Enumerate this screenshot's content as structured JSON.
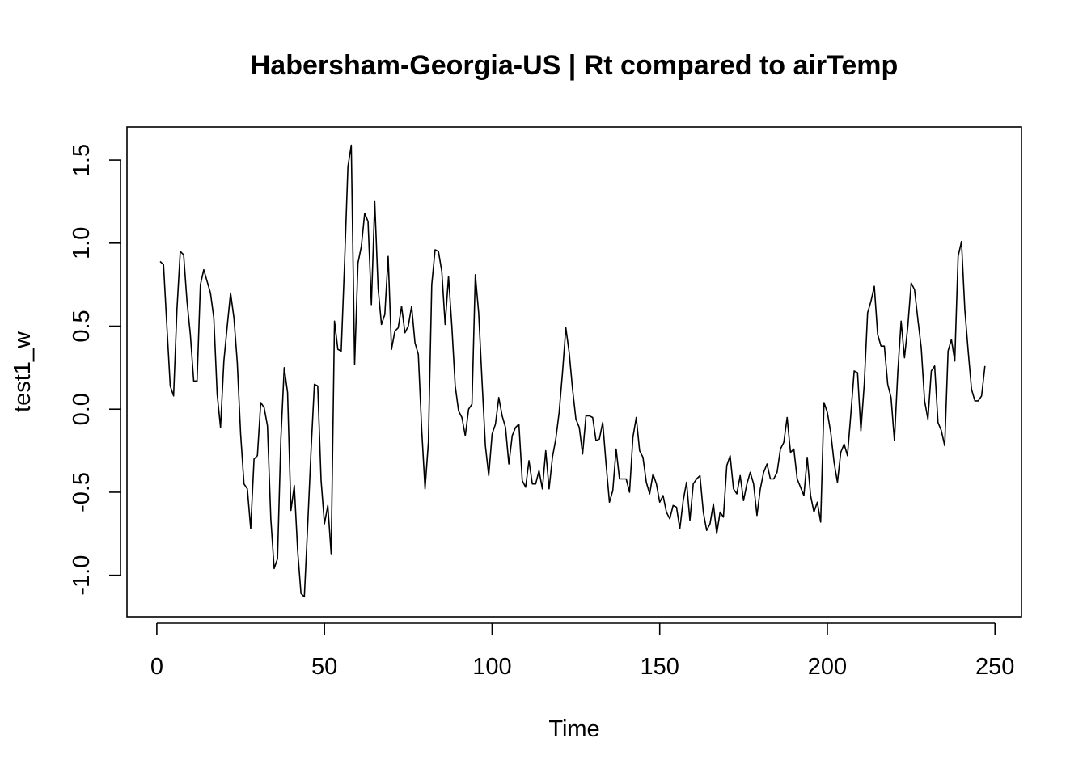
{
  "chart_data": {
    "type": "line",
    "title": "Habersham-Georgia-US | Rt compared to airTemp",
    "xlabel": "Time",
    "ylabel": "test1_w",
    "xlim": [
      -8.9,
      257.9
    ],
    "ylim": [
      -1.25,
      1.7
    ],
    "xticks": [
      0,
      50,
      100,
      150,
      200,
      250
    ],
    "yticks": [
      -1.0,
      -0.5,
      0.0,
      0.5,
      1.0,
      1.5
    ],
    "xtick_labels": [
      "0",
      "50",
      "100",
      "150",
      "200",
      "250"
    ],
    "ytick_labels": [
      "-1.0",
      "-0.5",
      "0.0",
      "0.5",
      "1.0",
      "1.5"
    ],
    "grid": false,
    "line_color": "#000000",
    "x_start": 1,
    "x_step": 1,
    "values": [
      0.89,
      0.87,
      0.5,
      0.14,
      0.08,
      0.6,
      0.95,
      0.93,
      0.65,
      0.45,
      0.17,
      0.17,
      0.75,
      0.84,
      0.77,
      0.7,
      0.55,
      0.09,
      -0.11,
      0.29,
      0.5,
      0.7,
      0.55,
      0.28,
      -0.15,
      -0.45,
      -0.48,
      -0.72,
      -0.3,
      -0.28,
      0.04,
      0.01,
      -0.1,
      -0.66,
      -0.96,
      -0.9,
      -0.18,
      0.25,
      0.1,
      -0.61,
      -0.46,
      -0.85,
      -1.11,
      -1.13,
      -0.7,
      -0.25,
      0.15,
      0.14,
      -0.43,
      -0.69,
      -0.58,
      -0.87,
      0.53,
      0.36,
      0.35,
      0.88,
      1.46,
      1.59,
      0.27,
      0.88,
      0.98,
      1.18,
      1.13,
      0.63,
      1.25,
      0.73,
      0.51,
      0.57,
      0.92,
      0.36,
      0.47,
      0.49,
      0.62,
      0.46,
      0.5,
      0.62,
      0.4,
      0.33,
      -0.12,
      -0.48,
      -0.2,
      0.75,
      0.96,
      0.95,
      0.83,
      0.51,
      0.8,
      0.5,
      0.14,
      -0.01,
      -0.05,
      -0.16,
      0.0,
      0.03,
      0.81,
      0.58,
      0.17,
      -0.22,
      -0.4,
      -0.15,
      -0.09,
      0.07,
      -0.04,
      -0.11,
      -0.33,
      -0.16,
      -0.11,
      -0.09,
      -0.43,
      -0.47,
      -0.31,
      -0.45,
      -0.45,
      -0.37,
      -0.48,
      -0.25,
      -0.48,
      -0.29,
      -0.18,
      -0.02,
      0.22,
      0.49,
      0.34,
      0.12,
      -0.06,
      -0.11,
      -0.27,
      -0.04,
      -0.04,
      -0.05,
      -0.19,
      -0.18,
      -0.08,
      -0.33,
      -0.56,
      -0.49,
      -0.24,
      -0.42,
      -0.42,
      -0.42,
      -0.5,
      -0.17,
      -0.05,
      -0.25,
      -0.29,
      -0.44,
      -0.51,
      -0.39,
      -0.45,
      -0.56,
      -0.52,
      -0.62,
      -0.66,
      -0.58,
      -0.59,
      -0.72,
      -0.55,
      -0.44,
      -0.67,
      -0.45,
      -0.42,
      -0.4,
      -0.62,
      -0.73,
      -0.69,
      -0.57,
      -0.75,
      -0.62,
      -0.65,
      -0.34,
      -0.28,
      -0.48,
      -0.51,
      -0.4,
      -0.55,
      -0.45,
      -0.38,
      -0.45,
      -0.64,
      -0.48,
      -0.38,
      -0.33,
      -0.42,
      -0.42,
      -0.38,
      -0.24,
      -0.2,
      -0.05,
      -0.26,
      -0.24,
      -0.42,
      -0.47,
      -0.52,
      -0.29,
      -0.52,
      -0.62,
      -0.56,
      -0.68,
      0.04,
      -0.02,
      -0.14,
      -0.32,
      -0.44,
      -0.26,
      -0.21,
      -0.28,
      -0.03,
      0.23,
      0.22,
      -0.13,
      0.15,
      0.58,
      0.65,
      0.74,
      0.45,
      0.38,
      0.38,
      0.15,
      0.07,
      -0.19,
      0.22,
      0.53,
      0.31,
      0.5,
      0.76,
      0.72,
      0.54,
      0.37,
      0.05,
      -0.06,
      0.23,
      0.26,
      -0.08,
      -0.13,
      -0.22,
      0.35,
      0.42,
      0.29,
      0.92,
      1.01,
      0.6,
      0.35,
      0.12,
      0.05,
      0.05,
      0.08,
      0.26
    ]
  }
}
